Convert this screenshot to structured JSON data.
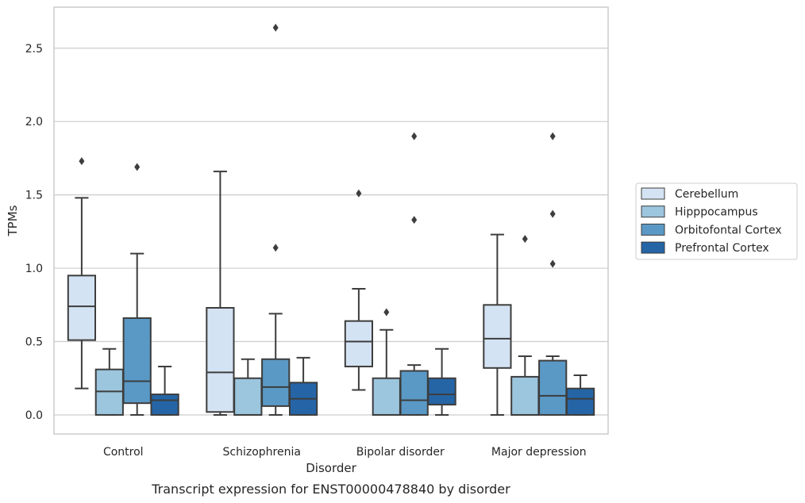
{
  "caption": "Transcript expression for ENST00000478840 by disorder",
  "chart_data": {
    "type": "boxplot",
    "xlabel": "Disorder",
    "ylabel": "TPMs",
    "ylim": [
      -0.13,
      2.78
    ],
    "yticks": [
      0.0,
      0.5,
      1.0,
      1.5,
      2.0,
      2.5
    ],
    "ytick_labels": [
      "0.0",
      "0.5",
      "1.0",
      "1.5",
      "2.0",
      "2.5"
    ],
    "grid": "horizontal",
    "legend_position": "right",
    "categories": [
      "Control",
      "Schizophrenia",
      "Bipolar disorder",
      "Major depression"
    ],
    "series": [
      {
        "name": "Cerebellum",
        "color": "#d4e3f3",
        "boxes": [
          {
            "whislo": 0.18,
            "q1": 0.51,
            "med": 0.74,
            "q3": 0.95,
            "whishi": 1.48,
            "fliers": [
              1.73
            ]
          },
          {
            "whislo": 0.0,
            "q1": 0.02,
            "med": 0.29,
            "q3": 0.73,
            "whishi": 1.66,
            "fliers": []
          },
          {
            "whislo": 0.17,
            "q1": 0.33,
            "med": 0.5,
            "q3": 0.64,
            "whishi": 0.86,
            "fliers": [
              1.51
            ]
          },
          {
            "whislo": 0.0,
            "q1": 0.32,
            "med": 0.52,
            "q3": 0.75,
            "whishi": 1.23,
            "fliers": []
          }
        ]
      },
      {
        "name": "Hipppocampus",
        "color": "#9cc5de",
        "boxes": [
          {
            "whislo": 0.0,
            "q1": 0.0,
            "med": 0.16,
            "q3": 0.31,
            "whishi": 0.45,
            "fliers": []
          },
          {
            "whislo": 0.0,
            "q1": 0.0,
            "med": 0.0,
            "q3": 0.25,
            "whishi": 0.38,
            "fliers": []
          },
          {
            "whislo": 0.0,
            "q1": 0.0,
            "med": 0.0,
            "q3": 0.25,
            "whishi": 0.58,
            "fliers": [
              0.7
            ]
          },
          {
            "whislo": 0.0,
            "q1": 0.0,
            "med": 0.0,
            "q3": 0.26,
            "whishi": 0.4,
            "fliers": [
              1.2
            ]
          }
        ]
      },
      {
        "name": "Orbitofontal Cortex",
        "color": "#5a99c6",
        "boxes": [
          {
            "whislo": 0.0,
            "q1": 0.08,
            "med": 0.23,
            "q3": 0.66,
            "whishi": 1.1,
            "fliers": [
              1.69
            ]
          },
          {
            "whislo": 0.0,
            "q1": 0.06,
            "med": 0.19,
            "q3": 0.38,
            "whishi": 0.69,
            "fliers": [
              1.14,
              2.64
            ]
          },
          {
            "whislo": 0.0,
            "q1": 0.0,
            "med": 0.1,
            "q3": 0.3,
            "whishi": 0.34,
            "fliers": [
              1.33,
              1.9
            ]
          },
          {
            "whislo": 0.0,
            "q1": 0.0,
            "med": 0.13,
            "q3": 0.37,
            "whishi": 0.4,
            "fliers": [
              1.03,
              1.37,
              1.9
            ]
          }
        ]
      },
      {
        "name": "Prefrontal Cortex",
        "color": "#2565a6",
        "boxes": [
          {
            "whislo": 0.0,
            "q1": 0.0,
            "med": 0.1,
            "q3": 0.14,
            "whishi": 0.33,
            "fliers": []
          },
          {
            "whislo": 0.0,
            "q1": 0.0,
            "med": 0.11,
            "q3": 0.22,
            "whishi": 0.39,
            "fliers": []
          },
          {
            "whislo": 0.0,
            "q1": 0.07,
            "med": 0.14,
            "q3": 0.25,
            "whishi": 0.45,
            "fliers": []
          },
          {
            "whislo": 0.0,
            "q1": 0.0,
            "med": 0.11,
            "q3": 0.18,
            "whishi": 0.27,
            "fliers": []
          }
        ]
      }
    ]
  }
}
